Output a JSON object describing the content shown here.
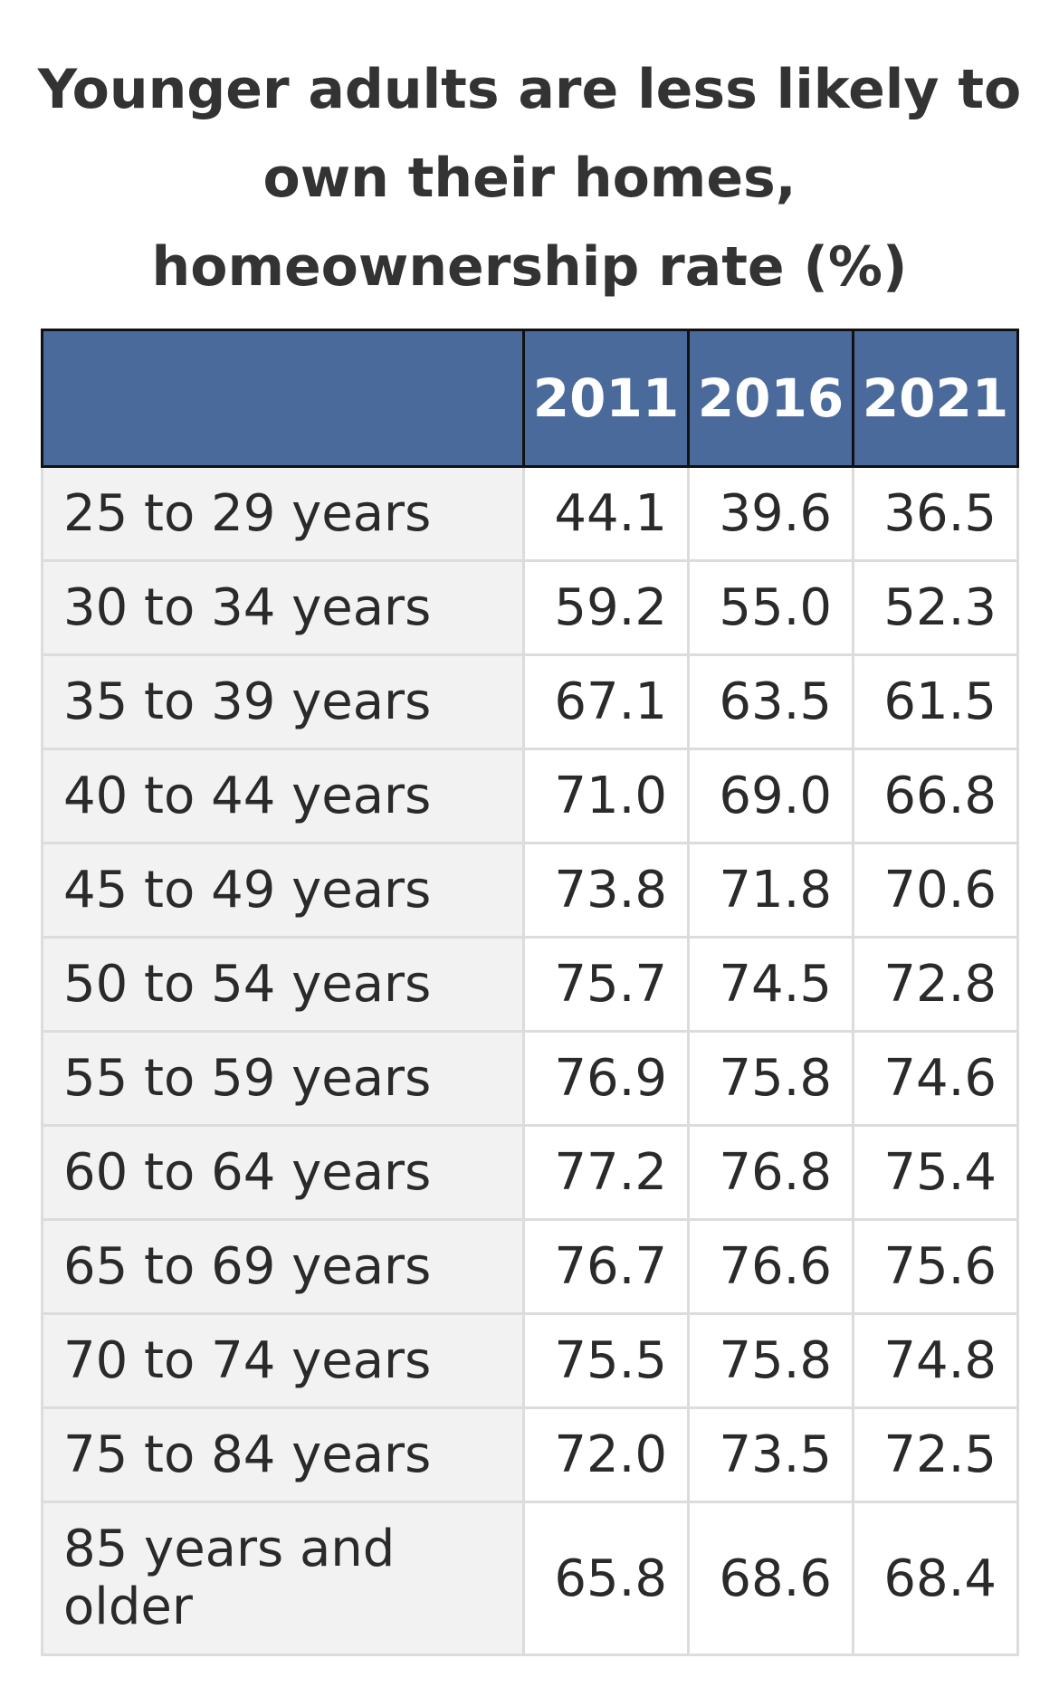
{
  "chart_data": {
    "type": "table",
    "title_lines": [
      "Younger adults are less likely to",
      "own their homes,",
      "homeownership rate (%)"
    ],
    "columns": [
      "",
      "2011",
      "2016",
      "2021"
    ],
    "rows": [
      {
        "label": "25 to 29 years",
        "values": [
          "44.1",
          "39.6",
          "36.5"
        ]
      },
      {
        "label": "30 to 34 years",
        "values": [
          "59.2",
          "55.0",
          "52.3"
        ]
      },
      {
        "label": "35 to 39 years",
        "values": [
          "67.1",
          "63.5",
          "61.5"
        ]
      },
      {
        "label": "40 to 44 years",
        "values": [
          "71.0",
          "69.0",
          "66.8"
        ]
      },
      {
        "label": "45 to 49 years",
        "values": [
          "73.8",
          "71.8",
          "70.6"
        ]
      },
      {
        "label": "50 to 54 years",
        "values": [
          "75.7",
          "74.5",
          "72.8"
        ]
      },
      {
        "label": "55 to 59 years",
        "values": [
          "76.9",
          "75.8",
          "74.6"
        ]
      },
      {
        "label": "60 to 64 years",
        "values": [
          "77.2",
          "76.8",
          "75.4"
        ]
      },
      {
        "label": "65 to 69 years",
        "values": [
          "76.7",
          "76.6",
          "75.6"
        ]
      },
      {
        "label": "70 to 74 years",
        "values": [
          "75.5",
          "75.8",
          "74.8"
        ]
      },
      {
        "label": "75 to 84 years",
        "values": [
          "72.0",
          "73.5",
          "72.5"
        ]
      },
      {
        "label": "85 years and older",
        "values": [
          "65.8",
          "68.6",
          "68.4"
        ]
      }
    ]
  },
  "colors": {
    "header_bg": "#4a6a9c",
    "header_text": "#ffffff",
    "label_bg": "#f2f2f2",
    "cell_border": "#dcdcdc"
  }
}
